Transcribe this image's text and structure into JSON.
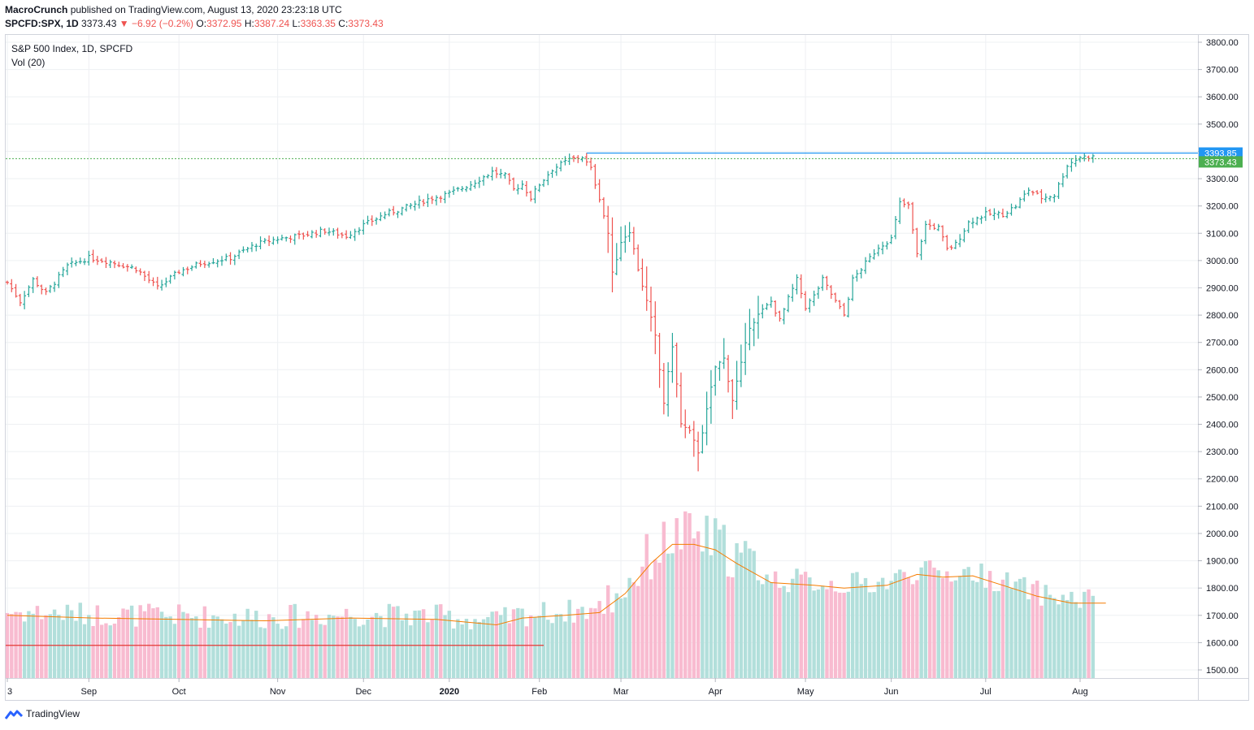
{
  "header": {
    "author": "MacroCrunch",
    "published_text": "published on TradingView.com, August 13, 2020 23:23:18 UTC",
    "symbol": "SPCFD:SPX, 1D",
    "last": "3373.43",
    "change_arrow": "▼",
    "change": "−6.92 (−0.2%)",
    "o_label": "O:",
    "o_value": "3372.95",
    "h_label": "H:",
    "h_value": "3387.24",
    "l_label": "L:",
    "l_value": "3363.35",
    "c_label": "C:",
    "c_value": "3373.43"
  },
  "legend": {
    "title": "S&P 500 Index, 1D, SPCFD",
    "vol": "Vol (20)"
  },
  "branding": {
    "name": "TradingView"
  },
  "colors": {
    "up": "#26a69a",
    "down": "#ef5350",
    "up_vol": "#b2dfdb",
    "down_vol": "#f8bbd0",
    "ma": "#f57c00",
    "level": "#2196f3",
    "last": "#4caf50",
    "low_line": "#e53935"
  },
  "chart_data": {
    "type": "ohlc",
    "title": "S&P 500 Index, 1D, SPCFD",
    "ylim": [
      1450,
      3830
    ],
    "y_ticks": [
      "3800.00",
      "3700.00",
      "3600.00",
      "3500.00",
      "3400.00",
      "3300.00",
      "3200.00",
      "3100.00",
      "3000.00",
      "2900.00",
      "2800.00",
      "2700.00",
      "2600.00",
      "2500.00",
      "2400.00",
      "2300.00",
      "2200.00",
      "2100.00",
      "2000.00",
      "1900.00",
      "1800.00",
      "1700.00",
      "1600.00",
      "1500.00"
    ],
    "x_labels": [
      {
        "label": "3",
        "index": 0
      },
      {
        "label": "Sep",
        "index": 19
      },
      {
        "label": "Oct",
        "index": 40
      },
      {
        "label": "Nov",
        "index": 63
      },
      {
        "label": "Dec",
        "index": 83
      },
      {
        "label": "2020",
        "index": 103
      },
      {
        "label": "Feb",
        "index": 124
      },
      {
        "label": "Mar",
        "index": 143
      },
      {
        "label": "Apr",
        "index": 165
      },
      {
        "label": "May",
        "index": 186
      },
      {
        "label": "Jun",
        "index": 206
      },
      {
        "label": "Jul",
        "index": 228
      },
      {
        "label": "Aug",
        "index": 250
      }
    ],
    "close_path": [
      [
        0,
        2920
      ],
      [
        3,
        2850
      ],
      [
        6,
        2930
      ],
      [
        9,
        2880
      ],
      [
        14,
        2980
      ],
      [
        19,
        3010
      ],
      [
        24,
        2995
      ],
      [
        30,
        2970
      ],
      [
        35,
        2900
      ],
      [
        40,
        2960
      ],
      [
        45,
        2990
      ],
      [
        52,
        3010
      ],
      [
        58,
        3060
      ],
      [
        63,
        3080
      ],
      [
        68,
        3090
      ],
      [
        74,
        3110
      ],
      [
        79,
        3090
      ],
      [
        83,
        3130
      ],
      [
        88,
        3170
      ],
      [
        93,
        3195
      ],
      [
        98,
        3225
      ],
      [
        103,
        3245
      ],
      [
        108,
        3280
      ],
      [
        113,
        3325
      ],
      [
        116,
        3310
      ],
      [
        118,
        3260
      ],
      [
        120,
        3280
      ],
      [
        122,
        3230
      ],
      [
        124,
        3280
      ],
      [
        127,
        3335
      ],
      [
        131,
        3370
      ],
      [
        134,
        3380
      ],
      [
        136,
        3335
      ],
      [
        138,
        3230
      ],
      [
        140,
        3100
      ],
      [
        141,
        2950
      ],
      [
        143,
        3070
      ],
      [
        145,
        3110
      ],
      [
        147,
        2970
      ],
      [
        149,
        2850
      ],
      [
        151,
        2720
      ],
      [
        153,
        2480
      ],
      [
        155,
        2690
      ],
      [
        157,
        2400
      ],
      [
        159,
        2370
      ],
      [
        161,
        2300
      ],
      [
        163,
        2450
      ],
      [
        165,
        2610
      ],
      [
        167,
        2640
      ],
      [
        169,
        2490
      ],
      [
        171,
        2620
      ],
      [
        173,
        2760
      ],
      [
        175,
        2800
      ],
      [
        178,
        2850
      ],
      [
        180,
        2780
      ],
      [
        182,
        2860
      ],
      [
        184,
        2930
      ],
      [
        186,
        2830
      ],
      [
        188,
        2870
      ],
      [
        190,
        2930
      ],
      [
        193,
        2850
      ],
      [
        195,
        2800
      ],
      [
        197,
        2930
      ],
      [
        200,
        2990
      ],
      [
        203,
        3050
      ],
      [
        206,
        3080
      ],
      [
        208,
        3210
      ],
      [
        210,
        3200
      ],
      [
        212,
        3020
      ],
      [
        214,
        3130
      ],
      [
        217,
        3120
      ],
      [
        219,
        3040
      ],
      [
        221,
        3060
      ],
      [
        224,
        3140
      ],
      [
        228,
        3170
      ],
      [
        232,
        3170
      ],
      [
        235,
        3200
      ],
      [
        238,
        3260
      ],
      [
        241,
        3230
      ],
      [
        244,
        3240
      ],
      [
        247,
        3350
      ],
      [
        250,
        3380
      ],
      [
        253,
        3380
      ]
    ],
    "volume_ma_path": [
      [
        0,
        1700
      ],
      [
        20,
        1690
      ],
      [
        40,
        1685
      ],
      [
        60,
        1680
      ],
      [
        80,
        1690
      ],
      [
        100,
        1685
      ],
      [
        114,
        1665
      ],
      [
        120,
        1690
      ],
      [
        130,
        1700
      ],
      [
        138,
        1710
      ],
      [
        144,
        1780
      ],
      [
        150,
        1890
      ],
      [
        155,
        1960
      ],
      [
        160,
        1960
      ],
      [
        165,
        1940
      ],
      [
        170,
        1890
      ],
      [
        178,
        1820
      ],
      [
        188,
        1810
      ],
      [
        195,
        1800
      ],
      [
        205,
        1810
      ],
      [
        212,
        1850
      ],
      [
        218,
        1840
      ],
      [
        225,
        1845
      ],
      [
        232,
        1810
      ],
      [
        240,
        1770
      ],
      [
        248,
        1745
      ],
      [
        256,
        1745
      ]
    ],
    "last_price": "3373.43",
    "level_price": "3393.85",
    "level_value": 3393.85,
    "last_value": 3373.43
  }
}
